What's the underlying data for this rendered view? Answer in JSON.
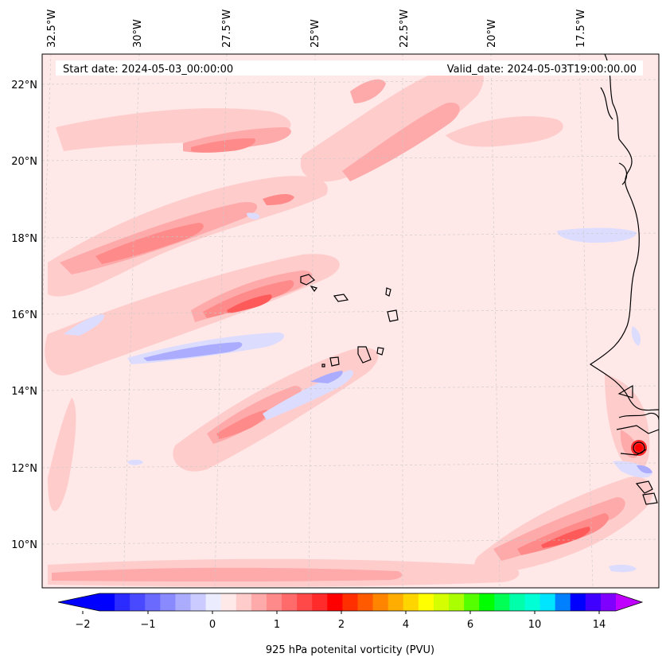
{
  "header": {
    "start_date": "Start date: 2024-05-03_00:00:00",
    "valid_date": "Valid_date: 2024-05-03T19:00:00.00"
  },
  "axes": {
    "lon_labels": [
      "32.5°W",
      "30°W",
      "27.5°W",
      "25°W",
      "22.5°W",
      "20°W",
      "17.5°W"
    ],
    "lat_labels": [
      "22°N",
      "20°N",
      "18°N",
      "16°N",
      "14°N",
      "12°N",
      "10°N"
    ]
  },
  "colorbar": {
    "title": "925 hPa potenital vorticity (PVU)",
    "ticks": [
      "−2",
      "−1",
      "0",
      "1",
      "2",
      "4",
      "6",
      "10",
      "14"
    ],
    "colors": [
      "#0000ff",
      "#2b2bff",
      "#4949ff",
      "#6a6aff",
      "#8a8aff",
      "#acacff",
      "#cbcbff",
      "#ececff",
      "#ffe8e8",
      "#ffcccc",
      "#ffaaaa",
      "#ff8a8a",
      "#ff6a6a",
      "#ff4848",
      "#ff2a2a",
      "#ff0000",
      "#ff2f00",
      "#ff5a00",
      "#ff8400",
      "#ffad00",
      "#ffd500",
      "#ffff00",
      "#d5ff00",
      "#aaff00",
      "#55ff00",
      "#00ff00",
      "#00ff55",
      "#00ffaa",
      "#00ffd5",
      "#00e5ff",
      "#0080ff",
      "#0000ff",
      "#4000ff",
      "#8000ff"
    ],
    "under_color": "#0000ff",
    "over_color": "#c000ff"
  }
}
